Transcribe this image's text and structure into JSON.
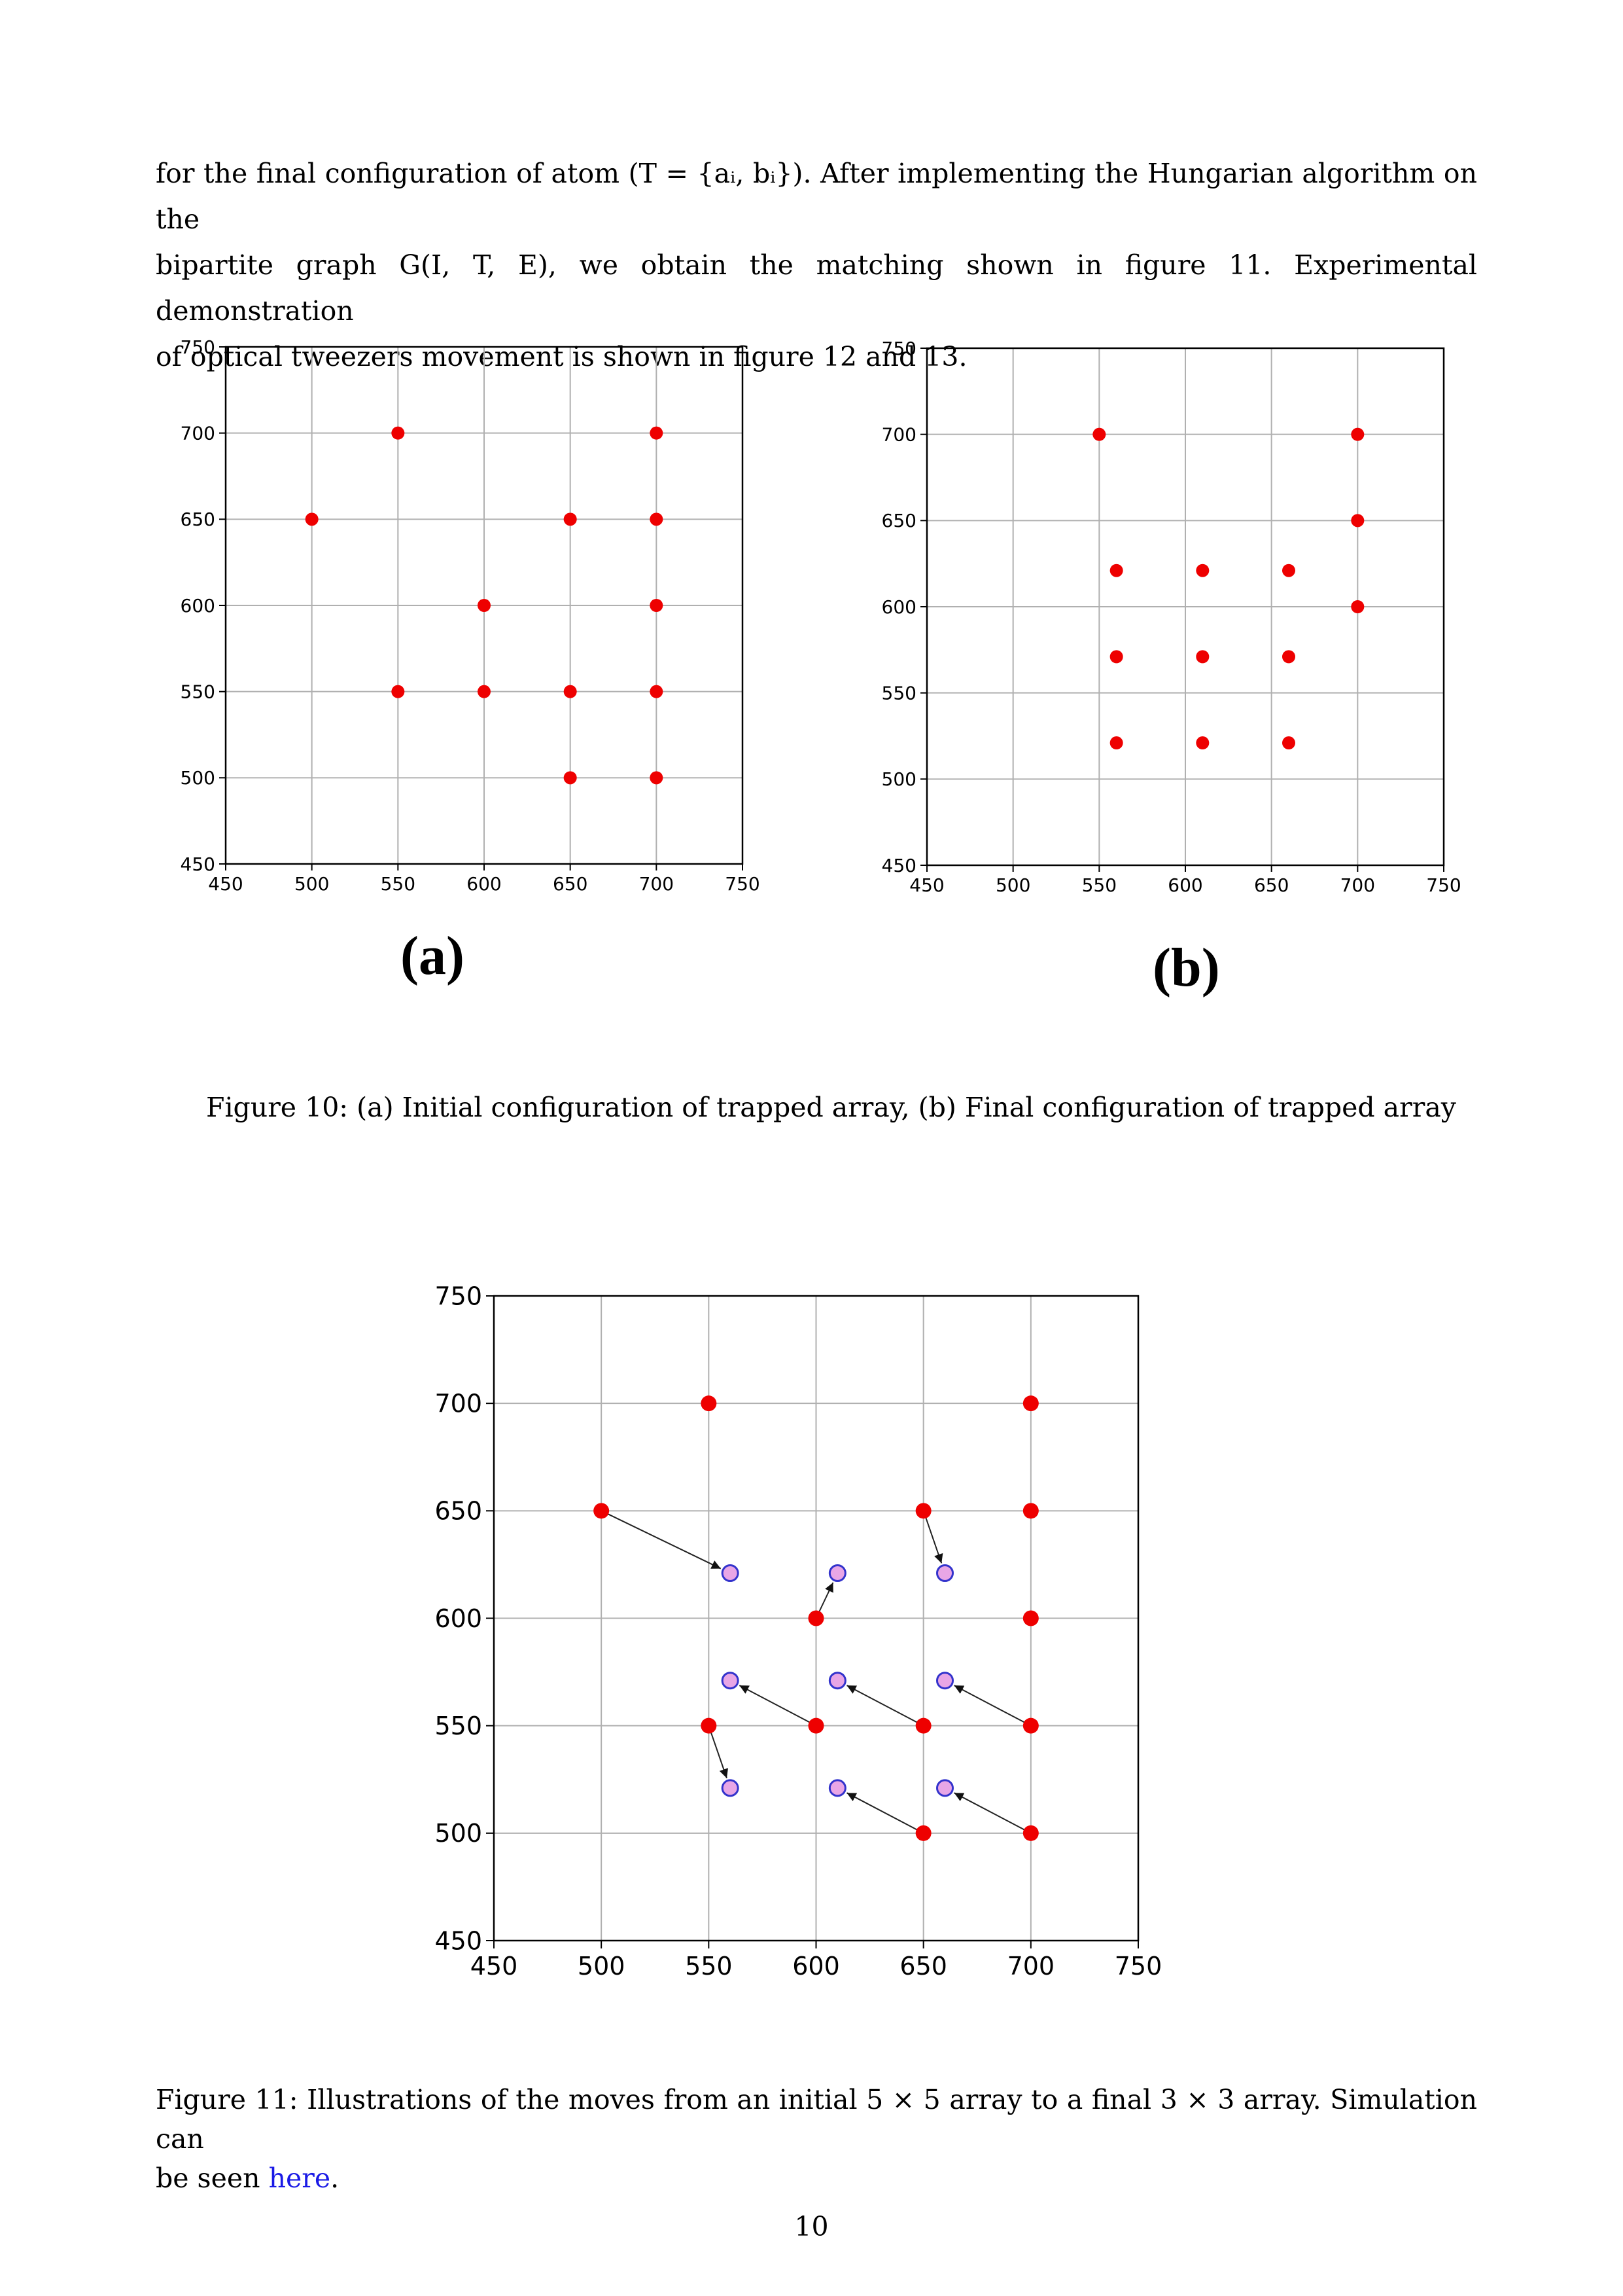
{
  "paragraph": {
    "line1": "for the final configuration of atom (T = {aᵢ, bᵢ}).  After implementing the Hungarian algorithm on the",
    "line2": "bipartite graph G(I, T, E), we obtain the matching shown in figure 11.  Experimental demonstration",
    "line3": "of optical tweezers movement is shown in figure 12 and 13."
  },
  "figure10": {
    "label_a": "(a)",
    "label_b": "(b)",
    "caption": "Figure 10:  (a) Initial configuration of trapped array, (b) Final configuration of trapped array"
  },
  "figure11": {
    "caption_line1": "Figure 11: Illustrations of the moves from an initial 5 × 5 array to a final 3 × 3 array. Simulation can",
    "caption_line2_prefix": "be seen ",
    "caption_link": "here",
    "caption_line2_suffix": "."
  },
  "page_number": "10",
  "colors": {
    "atom": "#ee0000",
    "target_fill": "#e8a6e6",
    "target_edge": "#3333cc",
    "grid": "#b0b0b0",
    "link": "#1a1ae6"
  },
  "chart_data": [
    {
      "type": "scatter",
      "id": "fig10a",
      "xlim": [
        450,
        750
      ],
      "ylim": [
        450,
        750
      ],
      "xticks": [
        450,
        500,
        550,
        600,
        650,
        700,
        750
      ],
      "yticks": [
        450,
        500,
        550,
        600,
        650,
        700,
        750
      ],
      "grid": true,
      "points": [
        [
          550,
          700
        ],
        [
          700,
          700
        ],
        [
          500,
          650
        ],
        [
          650,
          650
        ],
        [
          700,
          650
        ],
        [
          600,
          600
        ],
        [
          700,
          600
        ],
        [
          550,
          550
        ],
        [
          600,
          550
        ],
        [
          650,
          550
        ],
        [
          700,
          550
        ],
        [
          650,
          500
        ],
        [
          700,
          500
        ]
      ]
    },
    {
      "type": "scatter",
      "id": "fig10b",
      "xlim": [
        450,
        750
      ],
      "ylim": [
        450,
        750
      ],
      "xticks": [
        450,
        500,
        550,
        600,
        650,
        700,
        750
      ],
      "yticks": [
        450,
        500,
        550,
        600,
        650,
        700,
        750
      ],
      "grid": true,
      "points": [
        [
          550,
          700
        ],
        [
          700,
          700
        ],
        [
          700,
          650
        ],
        [
          560,
          621
        ],
        [
          610,
          621
        ],
        [
          660,
          621
        ],
        [
          700,
          600
        ],
        [
          560,
          571
        ],
        [
          610,
          571
        ],
        [
          660,
          571
        ],
        [
          560,
          521
        ],
        [
          610,
          521
        ],
        [
          660,
          521
        ]
      ]
    },
    {
      "type": "scatter",
      "id": "fig11",
      "xlim": [
        450,
        750
      ],
      "ylim": [
        450,
        750
      ],
      "xticks": [
        450,
        500,
        550,
        600,
        650,
        700,
        750
      ],
      "yticks": [
        450,
        500,
        550,
        600,
        650,
        700,
        750
      ],
      "grid": true,
      "initial_points": [
        [
          550,
          700
        ],
        [
          700,
          700
        ],
        [
          500,
          650
        ],
        [
          650,
          650
        ],
        [
          700,
          650
        ],
        [
          600,
          600
        ],
        [
          700,
          600
        ],
        [
          550,
          550
        ],
        [
          600,
          550
        ],
        [
          650,
          550
        ],
        [
          700,
          550
        ],
        [
          650,
          500
        ],
        [
          700,
          500
        ]
      ],
      "target_points": [
        [
          560,
          621
        ],
        [
          610,
          621
        ],
        [
          660,
          621
        ],
        [
          560,
          571
        ],
        [
          610,
          571
        ],
        [
          660,
          571
        ],
        [
          560,
          521
        ],
        [
          610,
          521
        ],
        [
          660,
          521
        ]
      ],
      "moves": [
        {
          "from": [
            500,
            650
          ],
          "to": [
            560,
            621
          ]
        },
        {
          "from": [
            650,
            650
          ],
          "to": [
            660,
            621
          ]
        },
        {
          "from": [
            600,
            600
          ],
          "to": [
            610,
            621
          ]
        },
        {
          "from": [
            600,
            550
          ],
          "to": [
            560,
            571
          ]
        },
        {
          "from": [
            650,
            550
          ],
          "to": [
            610,
            571
          ]
        },
        {
          "from": [
            700,
            550
          ],
          "to": [
            660,
            571
          ]
        },
        {
          "from": [
            550,
            550
          ],
          "to": [
            560,
            521
          ]
        },
        {
          "from": [
            650,
            500
          ],
          "to": [
            610,
            521
          ]
        },
        {
          "from": [
            700,
            500
          ],
          "to": [
            660,
            521
          ]
        }
      ]
    }
  ]
}
